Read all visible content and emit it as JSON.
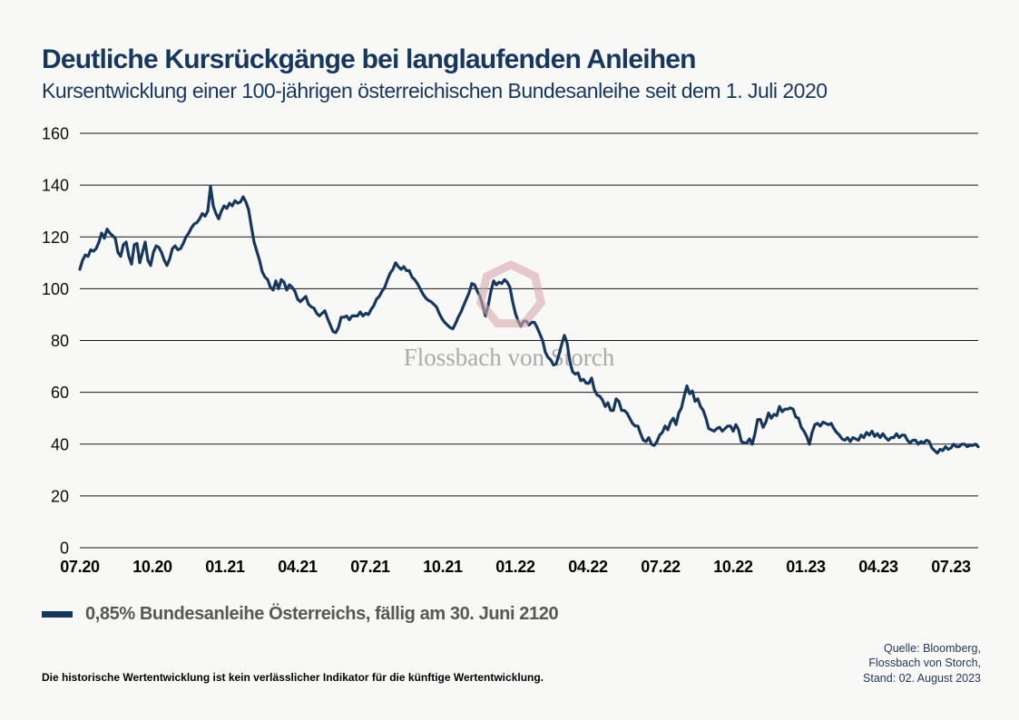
{
  "header": {
    "title": "Deutliche Kursrückgänge bei langlaufenden Anleihen",
    "subtitle": "Kursentwicklung einer 100-jährigen österreichischen Bundesanleihe seit dem 1. Juli 2020"
  },
  "legend": {
    "label": "0,85% Bundesanleihe Österreichs, fällig am 30. Juni 2120"
  },
  "watermark": {
    "text": "Flossbach von Storch",
    "shape": "heptagon-outline"
  },
  "footer": {
    "disclaimer": "Die historische Wertentwicklung ist kein verlässlicher Indikator für die künftige Wertentwicklung.",
    "source_lines": [
      "Quelle: Bloomberg,",
      "Flossbach von Storch,",
      "Stand: 02. August 2023"
    ]
  },
  "colors": {
    "background": "#f8f8f7",
    "title": "#17375e",
    "line": "#17375e",
    "grid": "#161616",
    "watermark_shape": "#d9a8ac",
    "watermark_text": "#a3a3a3",
    "legend_text": "#575756",
    "source_text": "#24395b"
  },
  "chart_data": {
    "type": "line",
    "title": "Deutliche Kursrückgänge bei langlaufenden Anleihen",
    "subtitle": "Kursentwicklung einer 100-jährigen österreichischen Bundesanleihe seit dem 1. Juli 2020",
    "xlabel": "",
    "ylabel": "",
    "ylim": [
      0,
      160
    ],
    "yticks": [
      160,
      140,
      120,
      100,
      80,
      60,
      40,
      20,
      0
    ],
    "xtick_labels": [
      "07.20",
      "10.20",
      "01.21",
      "04.21",
      "07.21",
      "10.21",
      "01.22",
      "04.22",
      "07.22",
      "10.22",
      "01.23",
      "04.23",
      "07.23"
    ],
    "xtick_months": [
      0,
      3,
      6,
      9,
      12,
      15,
      18,
      21,
      24,
      27,
      30,
      33,
      36
    ],
    "x_months_span": 37.125,
    "grid": "horizontal",
    "legend_position": "bottom-left",
    "series": [
      {
        "name": "0,85% Bundesanleihe Österreichs, fällig am 30. Juni 2120",
        "x_start_month": 0,
        "x_step_month": 0.1125,
        "values": [
          107.5,
          111,
          113,
          112.5,
          115,
          114.5,
          115.5,
          118,
          121.5,
          119.5,
          123,
          121.5,
          120.5,
          119.5,
          114,
          112.5,
          117,
          118,
          112.5,
          109.5,
          117,
          117.5,
          110,
          114,
          118,
          111,
          109,
          114,
          116.5,
          116,
          114,
          111,
          109,
          111.5,
          115.5,
          116.5,
          115,
          115.5,
          117.5,
          120,
          121.5,
          123.5,
          125,
          125.5,
          127,
          129,
          128,
          130,
          139.5,
          132,
          129,
          127,
          130,
          132,
          131,
          133,
          132,
          134,
          133,
          133.5,
          135.5,
          133.5,
          130.5,
          124,
          118,
          114.5,
          111,
          106.5,
          104.5,
          103.5,
          100.5,
          99.5,
          103,
          100,
          103.5,
          102.5,
          99.5,
          101.5,
          100.5,
          99,
          96,
          95,
          96,
          97,
          94,
          93,
          92.5,
          90.5,
          89.5,
          90.5,
          91.5,
          88.5,
          86,
          83.5,
          83,
          85,
          89,
          89,
          89.5,
          88,
          89.5,
          89.5,
          89.5,
          91,
          89.5,
          90.5,
          90,
          92,
          93.5,
          96,
          97,
          99,
          100.5,
          103.5,
          106,
          107.5,
          110,
          108.5,
          107.5,
          108.5,
          107,
          107,
          104.5,
          103.5,
          102,
          100,
          98,
          96.5,
          95.5,
          95,
          94,
          93,
          90.5,
          88.5,
          87,
          86,
          85,
          84.5,
          86.5,
          89,
          91,
          93.5,
          96,
          98.5,
          102,
          101.5,
          99,
          97,
          93.5,
          89.5,
          93.5,
          99,
          103,
          101.5,
          102.5,
          102,
          103.5,
          102.5,
          100.5,
          95,
          90.5,
          87.5,
          85.5,
          87.5,
          87.5,
          86,
          87,
          87,
          85,
          82.5,
          80,
          75.5,
          73.5,
          72.5,
          70.5,
          71,
          74.5,
          78.5,
          82,
          79,
          72,
          68,
          67,
          67.5,
          64.5,
          65,
          63.5,
          63.5,
          65.5,
          61,
          59,
          58.5,
          57,
          54.5,
          56,
          53,
          53,
          57.5,
          56.5,
          53,
          53,
          52,
          50,
          48,
          47,
          47,
          44,
          41.5,
          41,
          42.5,
          40,
          39.5,
          41,
          43.5,
          44.5,
          47,
          45.5,
          48.5,
          50,
          47.5,
          52,
          54,
          58.5,
          62.5,
          59.5,
          60.5,
          56.5,
          57.5,
          54.5,
          53,
          50,
          46,
          45.5,
          45,
          46,
          46.5,
          45,
          46,
          47,
          47,
          45,
          47.5,
          45.5,
          41,
          40.5,
          40.5,
          42,
          40,
          44,
          49.5,
          49.5,
          46.5,
          48.5,
          52,
          50,
          51.5,
          51,
          54.5,
          52.5,
          53.5,
          53.5,
          54,
          53.5,
          50.5,
          50,
          46.5,
          45,
          43,
          40,
          44.5,
          47.5,
          48,
          47,
          48.5,
          48,
          47.5,
          48,
          46,
          44.5,
          43.5,
          42,
          41.5,
          42.5,
          41,
          42.5,
          42,
          41.5,
          43.5,
          42.5,
          44.5,
          43.5,
          45,
          43,
          44,
          42.5,
          44,
          42.5,
          41.5,
          42.5,
          42.5,
          44,
          42.5,
          43.5,
          43.5,
          41.5,
          40.5,
          41.5,
          41.5,
          40,
          41,
          40.5,
          41.5,
          41,
          38.5,
          37.5,
          36.5,
          38,
          37.5,
          39,
          38,
          38.5,
          40,
          39,
          39,
          40,
          40,
          39,
          39.5,
          39.5,
          40,
          39
        ]
      }
    ]
  }
}
